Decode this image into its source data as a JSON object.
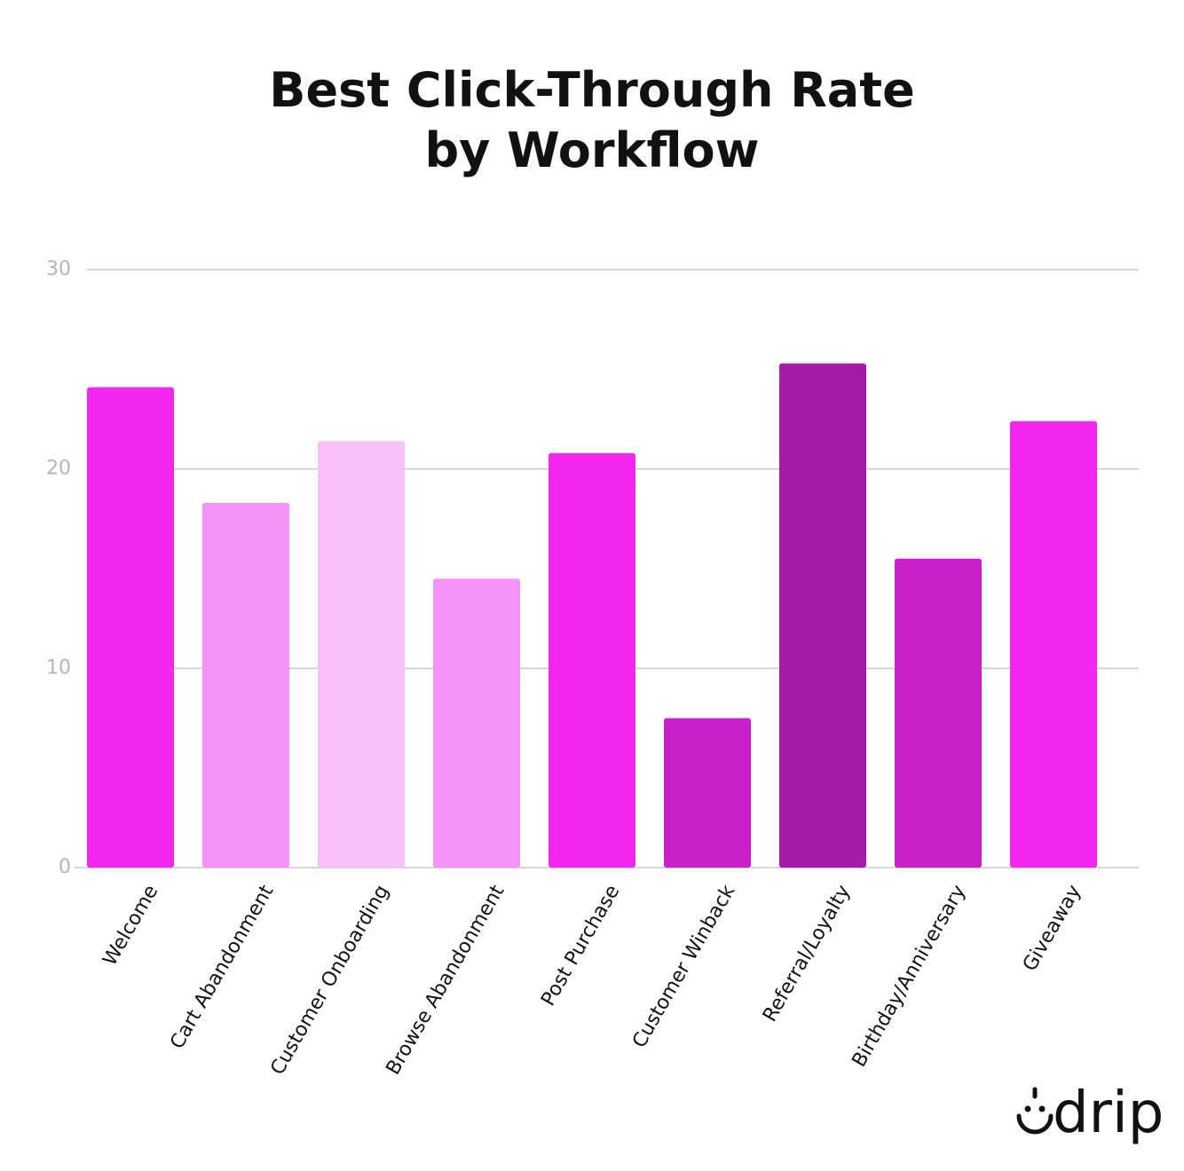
{
  "chart_data": {
    "type": "bar",
    "title": "Best Click-Through Rate by Workflow",
    "categories": [
      "Welcome",
      "Cart Abandonment",
      "Customer Onboarding",
      "Browse Abandonment",
      "Post Purchase",
      "Customer Winback",
      "Referral/Loyalty",
      "Birthday/Anniversary",
      "Giveaway"
    ],
    "values": [
      24.1,
      18.3,
      21.4,
      14.5,
      20.8,
      7.5,
      25.3,
      15.5,
      22.4
    ],
    "colors": [
      "#f226ee",
      "#f592f5",
      "#f9bff9",
      "#f592f5",
      "#f226ee",
      "#cc1fcc",
      "#a81ba8",
      "#cc1fcc",
      "#f226ee"
    ],
    "ylim": [
      0,
      30
    ],
    "yticks": [
      0,
      10,
      20,
      30
    ],
    "grid": true
  },
  "logo": "drip"
}
